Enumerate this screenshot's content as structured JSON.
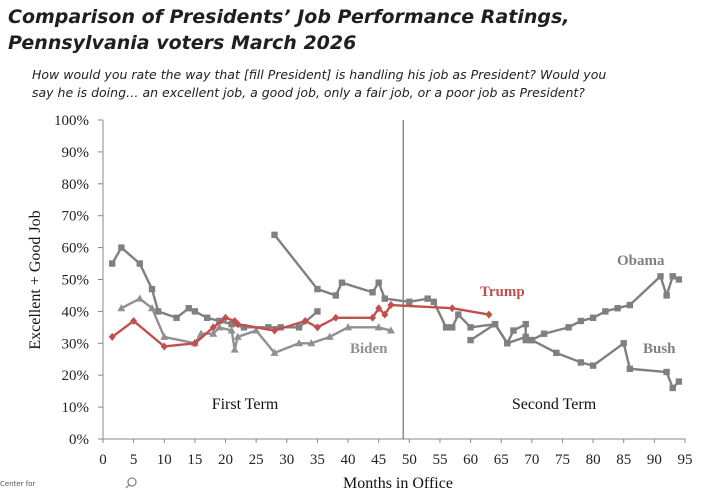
{
  "header": {
    "title_line1": "Comparison of Presidents’ Job Performance Ratings,",
    "title_line2": "Pennsylvania voters March 2026",
    "question_line1": "How would you rate the way that [fill President] is handling his job as President? Would you",
    "question_line2": "say he is doing… an excellent job, a good job, only a fair job, or a poor job as President?"
  },
  "footer": {
    "source_fragment": "Center for"
  },
  "chart_data": {
    "type": "line",
    "title": "Comparison of Presidents’ Job Performance Ratings, Pennsylvania voters March 2026",
    "xlabel": "Months in Office",
    "ylabel": "Excellent + Good Job",
    "xlim": [
      0,
      95
    ],
    "ylim": [
      0,
      100
    ],
    "x_ticks": [
      0,
      5,
      10,
      15,
      20,
      25,
      30,
      35,
      40,
      45,
      50,
      55,
      60,
      65,
      70,
      75,
      80,
      85,
      90,
      95
    ],
    "y_ticks": [
      "0%",
      "10%",
      "20%",
      "30%",
      "40%",
      "50%",
      "60%",
      "70%",
      "80%",
      "90%",
      "100%"
    ],
    "term_divider_x": 49,
    "term_labels": [
      "First Term",
      "Second Term"
    ],
    "series": [
      {
        "name": "Obama",
        "color": "#808080",
        "marker": "square",
        "points": [
          [
            1.5,
            55
          ],
          [
            3,
            60
          ],
          [
            6,
            55
          ],
          [
            8,
            47
          ],
          [
            9,
            40
          ],
          [
            12,
            38
          ],
          [
            14,
            41
          ],
          [
            15,
            40
          ],
          [
            17,
            38
          ],
          [
            19,
            37
          ],
          [
            21,
            36
          ],
          [
            23,
            35
          ],
          [
            27,
            35
          ],
          [
            29,
            35
          ],
          [
            32,
            35
          ],
          [
            35,
            40
          ]
        ],
        "points_2": [
          [
            28,
            64
          ],
          [
            35,
            47
          ],
          [
            38,
            45
          ],
          [
            39,
            49
          ],
          [
            44,
            46
          ],
          [
            45,
            49
          ],
          [
            46,
            44
          ],
          [
            50,
            43
          ],
          [
            53,
            44
          ],
          [
            54,
            43
          ],
          [
            56,
            35
          ],
          [
            57,
            35
          ],
          [
            58,
            39
          ],
          [
            60,
            35
          ],
          [
            64,
            36
          ],
          [
            66,
            30
          ],
          [
            67,
            34
          ],
          [
            69,
            36
          ],
          [
            69,
            31
          ],
          [
            70,
            31
          ],
          [
            72,
            33
          ],
          [
            76,
            35
          ],
          [
            78,
            37
          ],
          [
            80,
            38
          ],
          [
            82,
            40
          ],
          [
            84,
            41
          ],
          [
            86,
            42
          ],
          [
            91,
            51
          ],
          [
            92,
            45
          ],
          [
            93,
            51
          ],
          [
            94,
            50
          ]
        ]
      },
      {
        "name": "Bush",
        "color": "#808080",
        "marker": "square",
        "points": [
          [
            60,
            31
          ],
          [
            64,
            36
          ],
          [
            66,
            30
          ],
          [
            69,
            32
          ],
          [
            70,
            31
          ],
          [
            74,
            27
          ],
          [
            78,
            24
          ],
          [
            80,
            23
          ],
          [
            85,
            30
          ],
          [
            86,
            22
          ],
          [
            92,
            21
          ],
          [
            93,
            16
          ],
          [
            94,
            18
          ]
        ]
      },
      {
        "name": "Biden",
        "color": "#909090",
        "marker": "triangle",
        "points": [
          [
            3,
            41
          ],
          [
            6,
            44
          ],
          [
            8,
            41
          ],
          [
            10,
            32
          ],
          [
            15,
            30
          ],
          [
            16,
            33
          ],
          [
            18,
            33
          ],
          [
            19,
            35
          ],
          [
            21,
            34
          ],
          [
            21.5,
            28
          ],
          [
            22,
            32
          ],
          [
            25,
            34
          ],
          [
            28,
            27
          ],
          [
            32,
            30
          ],
          [
            34,
            30
          ],
          [
            37,
            32
          ],
          [
            40,
            35
          ],
          [
            45,
            35
          ],
          [
            47,
            34
          ]
        ]
      },
      {
        "name": "Trump",
        "color": "#c0504d",
        "marker": "diamond",
        "points": [
          [
            1.5,
            32
          ],
          [
            5,
            37
          ],
          [
            10,
            29
          ],
          [
            15,
            30
          ],
          [
            18,
            35
          ],
          [
            20,
            38
          ],
          [
            21.5,
            37
          ],
          [
            22,
            36
          ],
          [
            28,
            34
          ],
          [
            33,
            37
          ],
          [
            35,
            35
          ],
          [
            38,
            38
          ],
          [
            44,
            38
          ],
          [
            45,
            41
          ],
          [
            46,
            39
          ],
          [
            47,
            42
          ],
          [
            57,
            41
          ],
          [
            63,
            39
          ]
        ]
      }
    ]
  }
}
